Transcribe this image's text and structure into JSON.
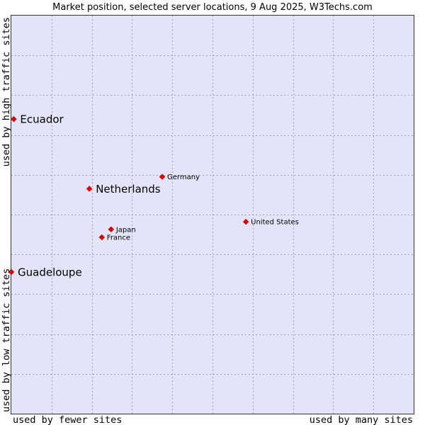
{
  "chart_data": {
    "type": "scatter",
    "title": "Market position, selected server locations, 9 Aug 2025, W3Techs.com",
    "xlabel_left": "used by fewer sites",
    "xlabel_right": "used by many sites",
    "ylabel_bottom": "used by low traffic sites",
    "ylabel_top": "used by high traffic sites",
    "grid": true,
    "xlim": [
      0,
      100
    ],
    "ylim": [
      0,
      100
    ],
    "colors": {
      "background": "#e3e4f7",
      "marker": "#e00000",
      "grid": "#a0a0b8"
    },
    "points": [
      {
        "name": "Ecuador",
        "x": 0.6,
        "y": 74.0,
        "emphasis": true
      },
      {
        "name": "Netherlands",
        "x": 19.4,
        "y": 56.5,
        "emphasis": true
      },
      {
        "name": "Germany",
        "x": 37.5,
        "y": 59.5,
        "emphasis": false
      },
      {
        "name": "United States",
        "x": 58.3,
        "y": 48.2,
        "emphasis": false
      },
      {
        "name": "Japan",
        "x": 24.8,
        "y": 46.3,
        "emphasis": false
      },
      {
        "name": "France",
        "x": 22.5,
        "y": 44.3,
        "emphasis": false
      },
      {
        "name": "Guadeloupe",
        "x": 0.0,
        "y": 35.6,
        "emphasis": true
      }
    ]
  }
}
